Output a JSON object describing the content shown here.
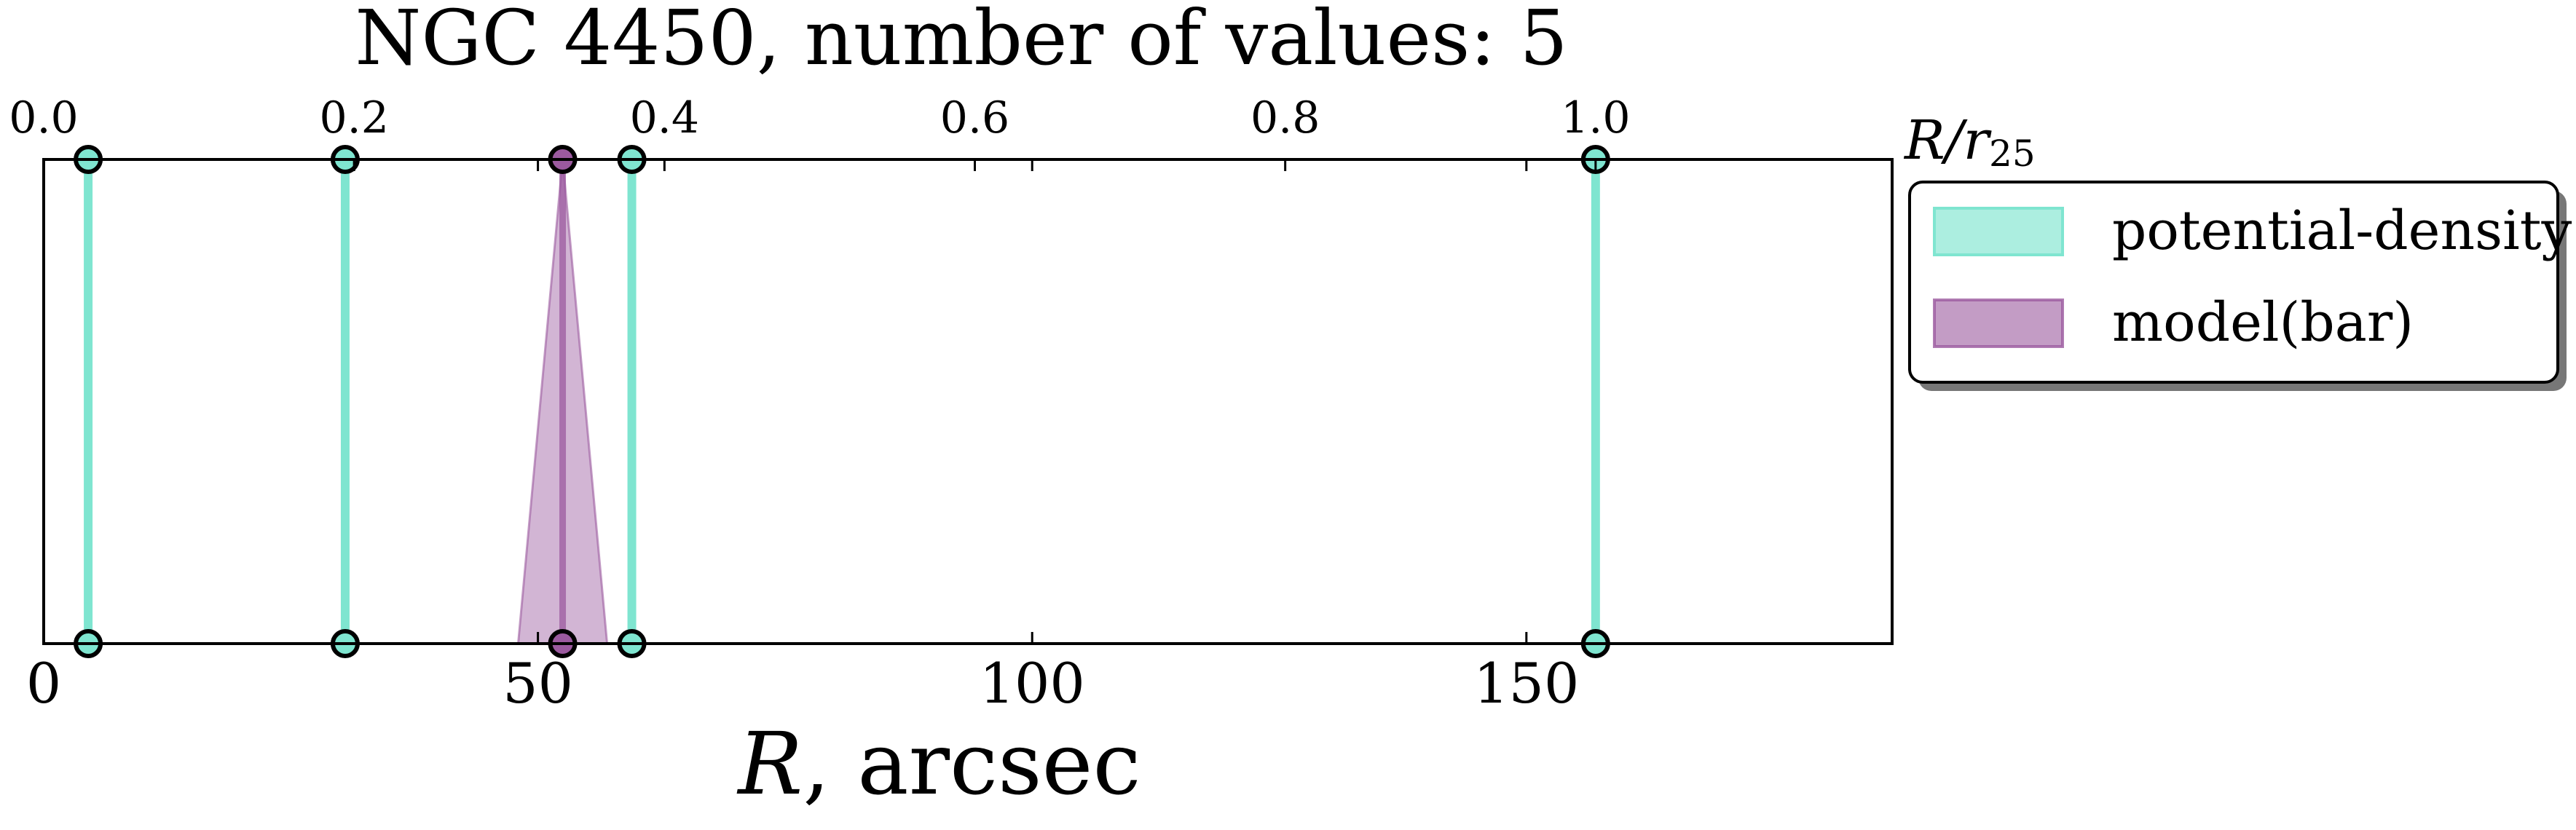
{
  "chart_data": {
    "type": "line",
    "title": "NGC 4450, number of values: 5",
    "xlabel_symbol": "R",
    "xlabel_unit": ", arcsec",
    "xlim": [
      0,
      187
    ],
    "xticks": [
      {
        "value": 0,
        "label": "0"
      },
      {
        "value": 50,
        "label": "50"
      },
      {
        "value": 100,
        "label": "100"
      },
      {
        "value": 150,
        "label": "150"
      }
    ],
    "top_axis": {
      "label_base": "R/r",
      "label_sub": "25",
      "ticks": [
        {
          "value": 0.0,
          "label": "0.0"
        },
        {
          "value": 0.2,
          "label": "0.2"
        },
        {
          "value": 0.4,
          "label": "0.4"
        },
        {
          "value": 0.6,
          "label": "0.6"
        },
        {
          "value": 0.8,
          "label": "0.8"
        },
        {
          "value": 1.0,
          "label": "1.0"
        }
      ],
      "arcsec_per_unit": 157
    },
    "series": [
      {
        "name": "potential-density",
        "color": "#7fe5d0",
        "values": [
          4.5,
          30.5,
          59.5,
          157
        ]
      },
      {
        "name": "model(bar)",
        "color": "#9b5a9f",
        "values": [
          52.5
        ],
        "uncertainty": [
          [
            48,
            57
          ]
        ]
      }
    ],
    "legend_position": "right"
  }
}
